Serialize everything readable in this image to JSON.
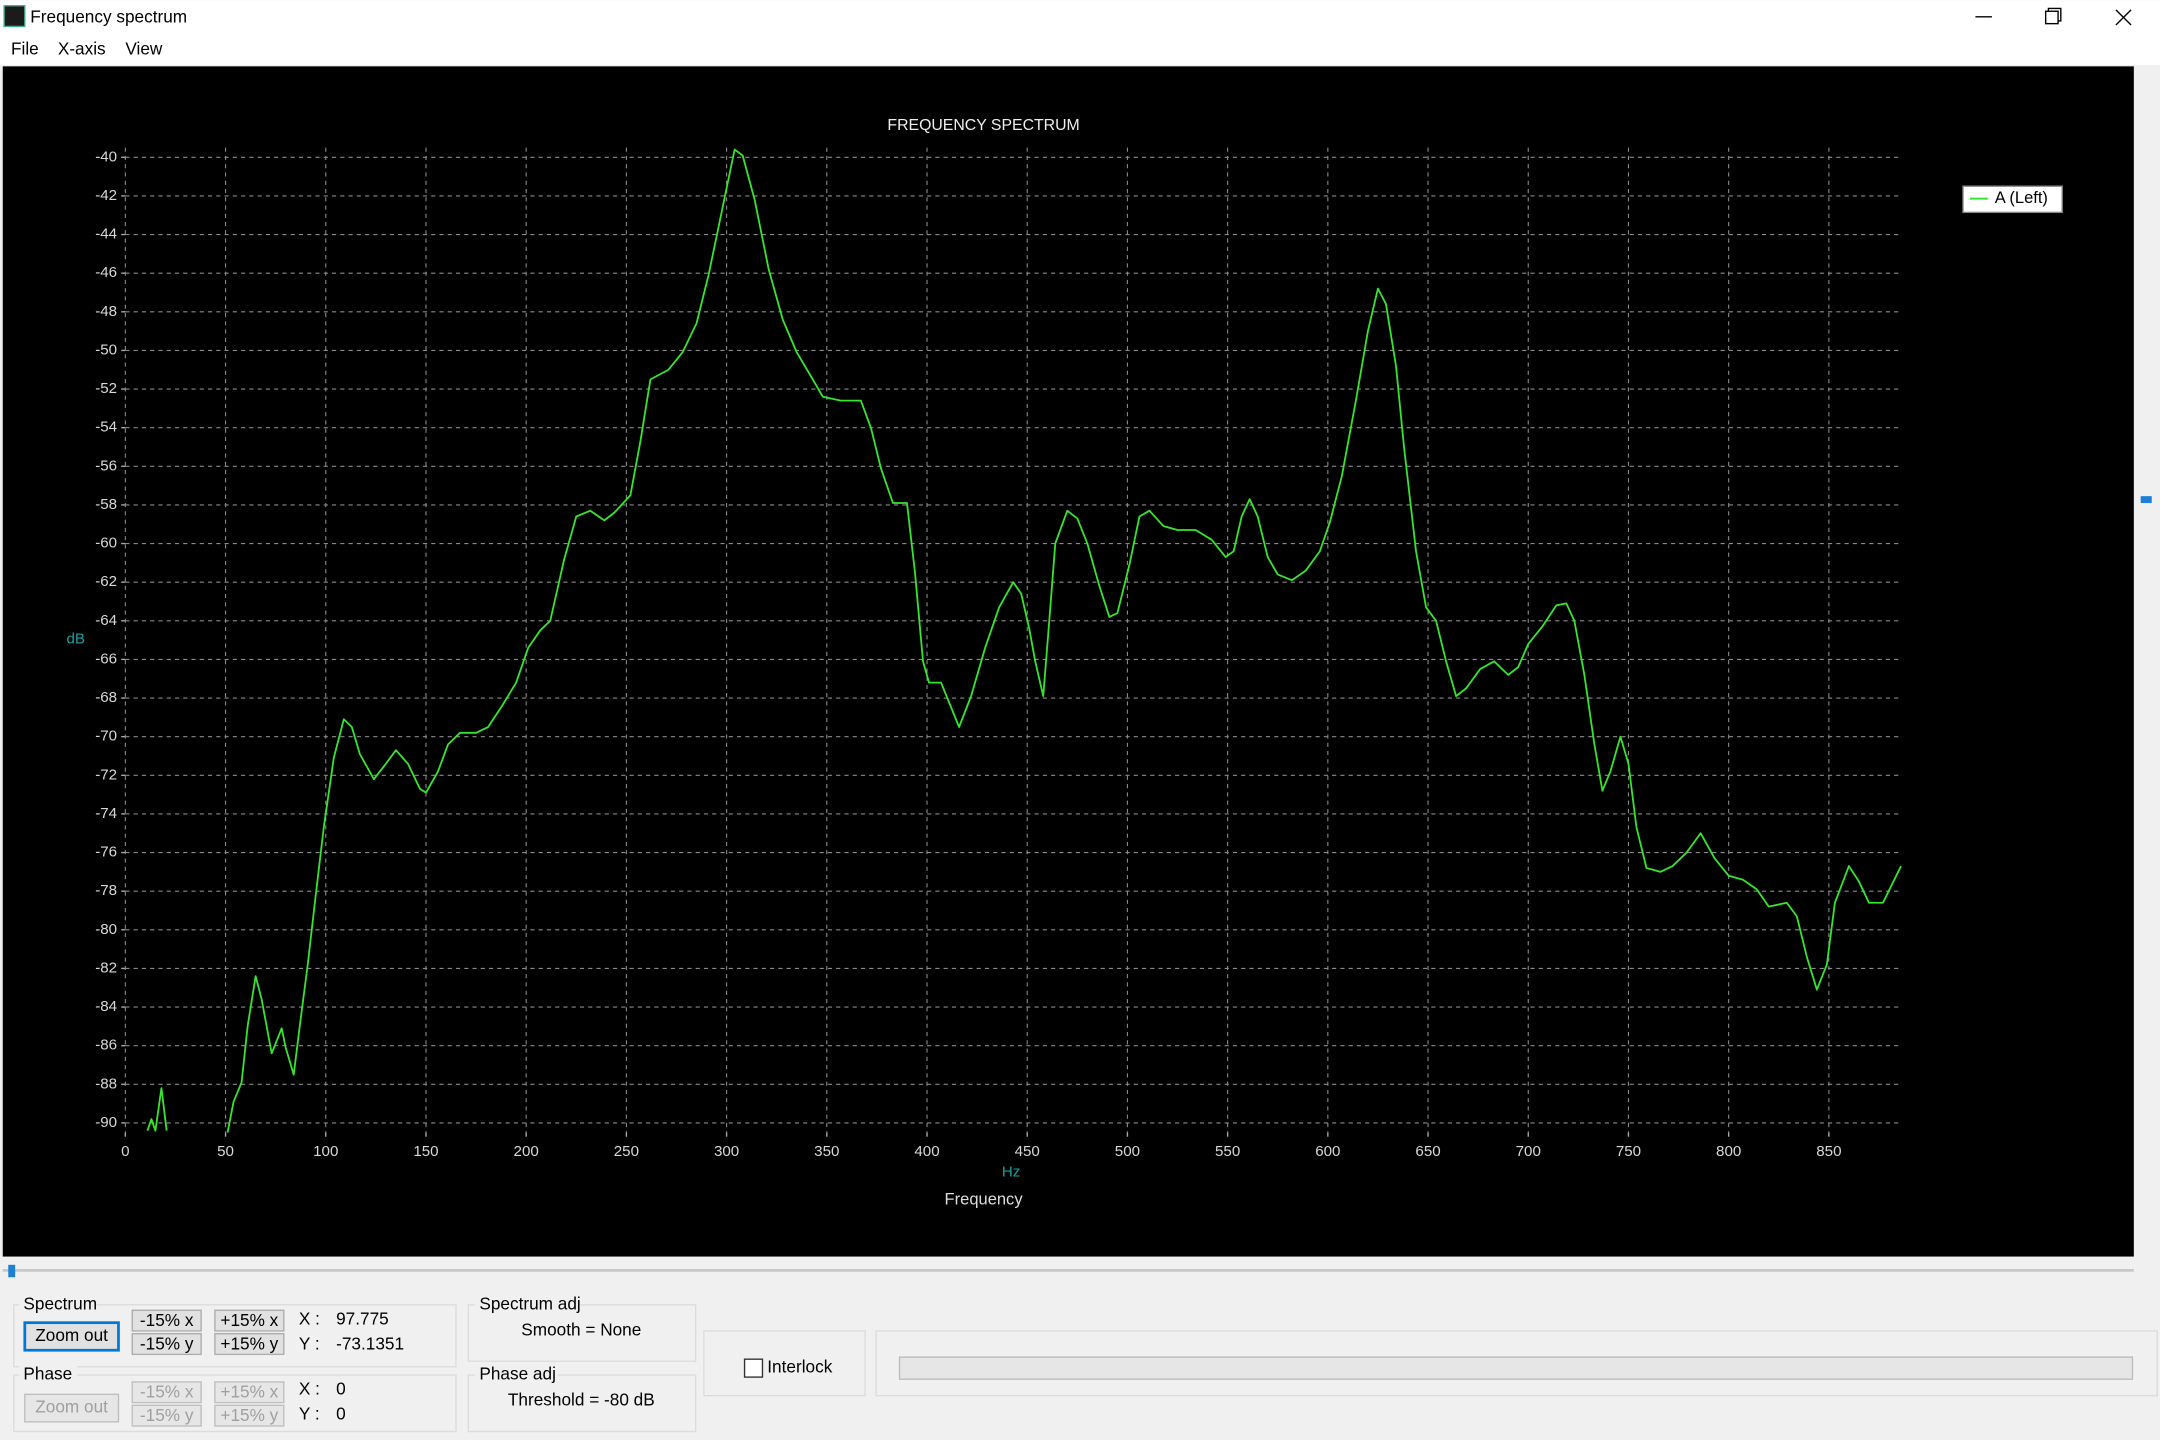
{
  "window": {
    "title": "Frequency spectrum"
  },
  "menu": [
    "File",
    "X-axis",
    "View"
  ],
  "chart_data": {
    "type": "line",
    "title": "FREQUENCY SPECTRUM",
    "y_unit": "dB",
    "x_unit": "Hz",
    "x_label": "Frequency",
    "xlim": [
      0,
      886
    ],
    "ylim": [
      -90.5,
      -39.5
    ],
    "xticks": [
      0,
      50,
      100,
      150,
      200,
      250,
      300,
      350,
      400,
      450,
      500,
      550,
      600,
      650,
      700,
      750,
      800,
      850
    ],
    "yticks": [
      -40,
      -42,
      -44,
      -46,
      -48,
      -50,
      -52,
      -54,
      -56,
      -58,
      -60,
      -62,
      -64,
      -66,
      -68,
      -70,
      -72,
      -74,
      -76,
      -78,
      -80,
      -82,
      -84,
      -86,
      -88,
      -90
    ],
    "grid": true,
    "legend": "right",
    "x": [
      11,
      13,
      15,
      18,
      20.6,
      35,
      51,
      54,
      58,
      61,
      65,
      68,
      73,
      78,
      80,
      84,
      87,
      91,
      95,
      99,
      104,
      109,
      113,
      117,
      124,
      130,
      135,
      141,
      147,
      150,
      156,
      161,
      167,
      175,
      181,
      188,
      195,
      201,
      207,
      212,
      219,
      225,
      232,
      239,
      244,
      252,
      257,
      262,
      271,
      278,
      285,
      291,
      298,
      304,
      308,
      314,
      321,
      328,
      335,
      343,
      348,
      357,
      367,
      372,
      377,
      383,
      390,
      394,
      398,
      401,
      407,
      416,
      422,
      429,
      436,
      443,
      447,
      451,
      454,
      458,
      461,
      464,
      470,
      475,
      480,
      486,
      491,
      495,
      501,
      506,
      511,
      518,
      525,
      534,
      542,
      549,
      553,
      557,
      561,
      565,
      570,
      575,
      582,
      589,
      596,
      601,
      607,
      614,
      620,
      625,
      629,
      634,
      638,
      644,
      649,
      654,
      659,
      664,
      669,
      676,
      683,
      690,
      695,
      700,
      707,
      714,
      719,
      723,
      728,
      733,
      737,
      741,
      746,
      750,
      754,
      759,
      766,
      772,
      779,
      786,
      793,
      800,
      807,
      814,
      820,
      829,
      834,
      839,
      844,
      849,
      853,
      860,
      865,
      870,
      877,
      886
    ],
    "series": [
      {
        "name": "A (Left)",
        "color": "#35e62c",
        "values": [
          -90.4,
          -89.8,
          -90.4,
          -88.2,
          -90.4,
          null,
          -90.5,
          -88.9,
          -87.9,
          -85,
          -82.4,
          -83.6,
          -86.4,
          -85.1,
          -86.1,
          -87.5,
          -85,
          -81.8,
          -78.2,
          -74.7,
          -71.1,
          -69.1,
          -69.5,
          -70.9,
          -72.2,
          -71.4,
          -70.7,
          -71.4,
          -72.7,
          -72.9,
          -71.8,
          -70.4,
          -69.8,
          -69.8,
          -69.5,
          -68.4,
          -67.2,
          -65.4,
          -64.5,
          -64,
          -60.8,
          -58.6,
          -58.3,
          -58.8,
          -58.4,
          -57.5,
          -54.7,
          -51.5,
          -51,
          -50.1,
          -48.6,
          -46.1,
          -42.6,
          -39.6,
          -39.9,
          -42.2,
          -45.8,
          -48.4,
          -50.1,
          -51.5,
          -52.4,
          -52.6,
          -52.6,
          -54,
          -56.1,
          -57.9,
          -57.9,
          -61.5,
          -66.1,
          -67.2,
          -67.2,
          -69.5,
          -67.9,
          -65.4,
          -63.3,
          -62,
          -62.6,
          -64.4,
          -66.1,
          -67.9,
          -64,
          -60,
          -58.3,
          -58.7,
          -60,
          -62.2,
          -63.8,
          -63.6,
          -61.1,
          -58.6,
          -58.3,
          -59.1,
          -59.3,
          -59.3,
          -59.8,
          -60.7,
          -60.4,
          -58.6,
          -57.7,
          -58.6,
          -60.7,
          -61.6,
          -61.9,
          -61.4,
          -60.4,
          -58.9,
          -56.5,
          -52.6,
          -49,
          -46.8,
          -47.6,
          -50.8,
          -55,
          -60.4,
          -63.3,
          -64,
          -66.1,
          -67.9,
          -67.5,
          -66.5,
          -66.1,
          -66.8,
          -66.4,
          -65.2,
          -64.3,
          -63.2,
          -63.1,
          -64,
          -66.8,
          -70.4,
          -72.8,
          -71.8,
          -70,
          -71.4,
          -74.7,
          -76.8,
          -77,
          -76.7,
          -76,
          -75,
          -76.3,
          -77.2,
          -77.4,
          -77.9,
          -78.8,
          -78.6,
          -79.3,
          -81.4,
          -83.1,
          -81.8,
          -78.6,
          -76.7,
          -77.5,
          -78.6,
          -78.6,
          -76.7
        ]
      }
    ]
  },
  "controls": {
    "spectrum": {
      "title": "Spectrum",
      "zoom": "Zoom out",
      "buttons": [
        "-15% x",
        "+15% x",
        "-15% y",
        "+15% y"
      ],
      "x_label": "X :",
      "x_value": "97.775",
      "y_label": "Y :",
      "y_value": "-73.1351"
    },
    "phase": {
      "title": "Phase",
      "zoom": "Zoom out",
      "buttons": [
        "-15% x",
        "+15% x",
        "-15% y",
        "+15% y"
      ],
      "x_label": "X :",
      "x_value": "0",
      "y_label": "Y :",
      "y_value": "0"
    },
    "spectrum_adj": {
      "title": "Spectrum adj",
      "text": "Smooth = None"
    },
    "phase_adj": {
      "title": "Phase adj",
      "text": "Threshold = -80 dB"
    },
    "interlock": "Interlock"
  }
}
